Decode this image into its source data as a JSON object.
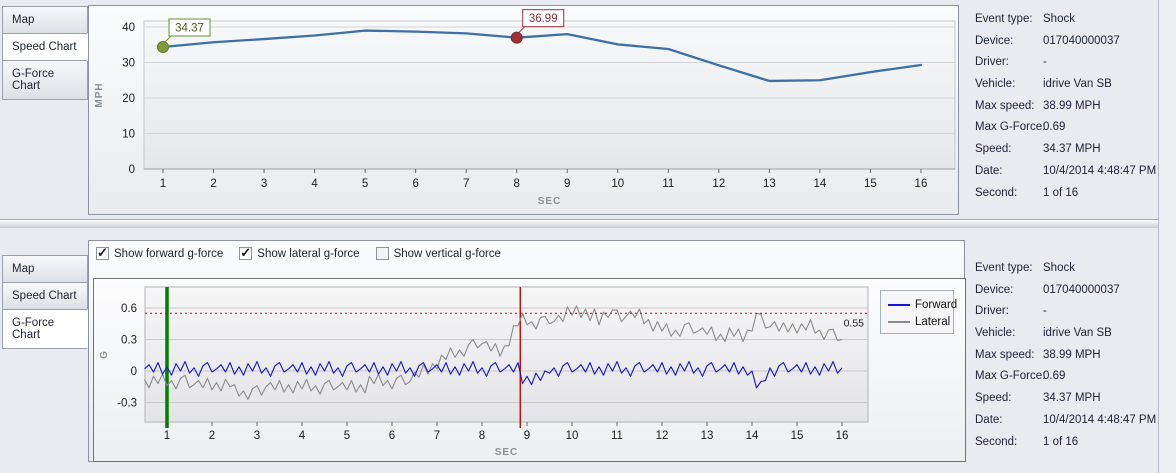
{
  "top_panel": {
    "tabs": [
      {
        "label": "Map",
        "selected": false
      },
      {
        "label": "Speed Chart",
        "selected": true
      },
      {
        "label": "G-Force Chart",
        "selected": false
      }
    ]
  },
  "bottom_panel": {
    "tabs": [
      {
        "label": "Map",
        "selected": false
      },
      {
        "label": "Speed Chart",
        "selected": false
      },
      {
        "label": "G-Force Chart",
        "selected": true
      }
    ],
    "checkboxes": [
      {
        "label": "Show forward g-force",
        "checked": true
      },
      {
        "label": "Show lateral g-force",
        "checked": true
      },
      {
        "label": "Show vertical g-force",
        "checked": false
      }
    ]
  },
  "event_info": {
    "rows": [
      {
        "label": "Event type:",
        "value": "Shock"
      },
      {
        "label": "Device:",
        "value": "017040000037"
      },
      {
        "label": "Driver:",
        "value": "-"
      },
      {
        "label": "Vehicle:",
        "value": "idrive Van SB"
      },
      {
        "label": "Max speed:",
        "value": "38.99 MPH"
      },
      {
        "label": "Max G-Force:",
        "value": "0.69"
      },
      {
        "label": "Speed:",
        "value": "34.37 MPH"
      },
      {
        "label": "Date:",
        "value": "10/4/2014 4:48:47 PM"
      },
      {
        "label": "Second:",
        "value": "1 of 16"
      }
    ]
  },
  "chart_data": [
    {
      "type": "line",
      "title": "Speed Chart",
      "xlabel": "SEC",
      "ylabel": "MPH",
      "x": [
        1,
        2,
        3,
        4,
        5,
        6,
        7,
        8,
        9,
        10,
        11,
        12,
        13,
        14,
        15,
        16
      ],
      "values": [
        34.37,
        35.7,
        36.6,
        37.6,
        38.99,
        38.7,
        38.2,
        36.99,
        38.0,
        35.1,
        33.8,
        29.2,
        24.8,
        25.0,
        27.3,
        29.3
      ],
      "yticks": [
        0,
        10,
        20,
        30,
        40
      ],
      "xticks": [
        1,
        2,
        3,
        4,
        5,
        6,
        7,
        8,
        9,
        10,
        11,
        12,
        13,
        14,
        15,
        16
      ],
      "ylim": [
        0,
        41.7
      ],
      "line_color": "#3d6fa8",
      "markers": [
        {
          "x": 1,
          "y": 34.37,
          "label": "34.37",
          "fill": "#7e9d3c",
          "stroke": "#637d2a",
          "box_border": "#6b8f2f",
          "text_color": "#4a5a20"
        },
        {
          "x": 8,
          "y": 36.99,
          "label": "36.99",
          "fill": "#9e3036",
          "stroke": "#7c262b",
          "box_border": "#96333a",
          "text_color": "#8b2f35"
        }
      ]
    },
    {
      "type": "line",
      "title": "G-Force Chart",
      "xlabel": "SEC",
      "ylabel": "G",
      "x_start": 0.5,
      "x_step": 0.1,
      "yticks": [
        -0.3,
        0,
        0.3,
        0.6
      ],
      "xticks": [
        1,
        2,
        3,
        4,
        5,
        6,
        7,
        8,
        9,
        10,
        11,
        12,
        13,
        14,
        15,
        16
      ],
      "ylim": [
        -0.49,
        0.8
      ],
      "threshold": {
        "y": 0.55,
        "label": "0.55",
        "color": "#e00000"
      },
      "vlines": [
        {
          "name": "event-start",
          "x": 1,
          "color": "#008000",
          "width": 3.5
        },
        {
          "name": "shock-moment",
          "x": 8.85,
          "color": "#cc0000",
          "width": 1.4
        }
      ],
      "legend_position": "right",
      "series": [
        {
          "name": "Forward",
          "color": "#1414cc",
          "values": [
            0.02,
            0.06,
            -0.01,
            0.08,
            -0.03,
            0.04,
            -0.04,
            0.07,
            0.0,
            0.09,
            -0.02,
            0.03,
            -0.05,
            0.05,
            0.08,
            -0.01,
            0.02,
            0.06,
            -0.01,
            0.08,
            -0.03,
            0.04,
            -0.04,
            0.07,
            0.0,
            0.09,
            -0.02,
            0.03,
            -0.05,
            0.05,
            0.08,
            -0.01,
            0.02,
            0.06,
            -0.01,
            0.08,
            -0.03,
            0.04,
            -0.04,
            0.07,
            0.0,
            0.09,
            -0.02,
            0.03,
            -0.05,
            0.05,
            0.08,
            -0.01,
            0.02,
            0.06,
            -0.01,
            0.08,
            -0.03,
            0.04,
            -0.04,
            0.07,
            0.0,
            0.09,
            -0.02,
            0.03,
            -0.05,
            0.05,
            0.08,
            -0.01,
            0.02,
            0.06,
            -0.01,
            0.08,
            -0.03,
            0.04,
            -0.04,
            0.07,
            0.0,
            0.09,
            -0.02,
            0.03,
            -0.05,
            0.05,
            0.08,
            -0.01,
            0.02,
            0.06,
            -0.01,
            0.08,
            -0.12,
            -0.05,
            -0.13,
            -0.02,
            -0.09,
            0.0,
            -0.02,
            0.03,
            -0.05,
            0.05,
            0.08,
            -0.01,
            0.02,
            0.06,
            -0.01,
            0.08,
            -0.03,
            0.04,
            -0.04,
            0.07,
            0.0,
            0.09,
            -0.02,
            0.03,
            -0.05,
            0.05,
            0.08,
            -0.01,
            0.02,
            0.06,
            -0.01,
            0.08,
            -0.03,
            0.04,
            -0.04,
            0.07,
            0.0,
            0.09,
            -0.02,
            0.03,
            -0.05,
            0.05,
            0.08,
            -0.01,
            0.02,
            0.06,
            -0.01,
            0.08,
            -0.03,
            0.04,
            -0.04,
            0.0,
            -0.16,
            -0.1,
            -0.09,
            0.03,
            -0.05,
            0.05,
            0.08,
            -0.01,
            0.02,
            0.06,
            -0.01,
            0.08,
            -0.03,
            0.04,
            -0.04,
            0.07,
            0.0,
            0.09,
            -0.02,
            0.03
          ]
        },
        {
          "name": "Lateral",
          "color": "#8a8a8a",
          "values": [
            -0.08,
            -0.16,
            -0.05,
            -0.12,
            -0.03,
            -0.14,
            -0.09,
            -0.17,
            -0.07,
            -0.04,
            -0.16,
            -0.13,
            -0.09,
            -0.16,
            -0.07,
            -0.18,
            -0.11,
            -0.19,
            -0.08,
            -0.15,
            -0.13,
            -0.24,
            -0.19,
            -0.27,
            -0.17,
            -0.14,
            -0.23,
            -0.15,
            -0.11,
            -0.18,
            -0.09,
            -0.2,
            -0.13,
            -0.21,
            -0.1,
            -0.17,
            -0.08,
            -0.19,
            -0.14,
            -0.22,
            -0.12,
            -0.09,
            -0.18,
            -0.15,
            -0.11,
            -0.18,
            -0.09,
            -0.2,
            -0.13,
            -0.21,
            -0.05,
            -0.12,
            -0.03,
            -0.14,
            -0.09,
            -0.17,
            -0.07,
            -0.04,
            -0.13,
            -0.1,
            -0.01,
            -0.06,
            0.06,
            -0.03,
            0.07,
            0.02,
            0.15,
            0.11,
            0.22,
            0.13,
            0.2,
            0.14,
            0.25,
            0.3,
            0.22,
            0.26,
            0.28,
            0.19,
            0.26,
            0.14,
            0.24,
            0.24,
            0.43,
            0.43,
            0.55,
            0.44,
            0.47,
            0.4,
            0.51,
            0.52,
            0.45,
            0.47,
            0.53,
            0.47,
            0.61,
            0.53,
            0.62,
            0.51,
            0.59,
            0.48,
            0.59,
            0.44,
            0.56,
            0.51,
            0.58,
            0.58,
            0.47,
            0.52,
            0.57,
            0.51,
            0.59,
            0.45,
            0.49,
            0.38,
            0.47,
            0.38,
            0.45,
            0.33,
            0.39,
            0.33,
            0.44,
            0.46,
            0.36,
            0.38,
            0.41,
            0.35,
            0.42,
            0.29,
            0.35,
            0.28,
            0.41,
            0.33,
            0.4,
            0.28,
            0.39,
            0.38,
            0.55,
            0.54,
            0.41,
            0.42,
            0.47,
            0.38,
            0.46,
            0.37,
            0.45,
            0.36,
            0.45,
            0.39,
            0.49,
            0.36,
            0.39,
            0.3,
            0.39,
            0.4,
            0.29,
            0.3
          ]
        }
      ]
    }
  ]
}
